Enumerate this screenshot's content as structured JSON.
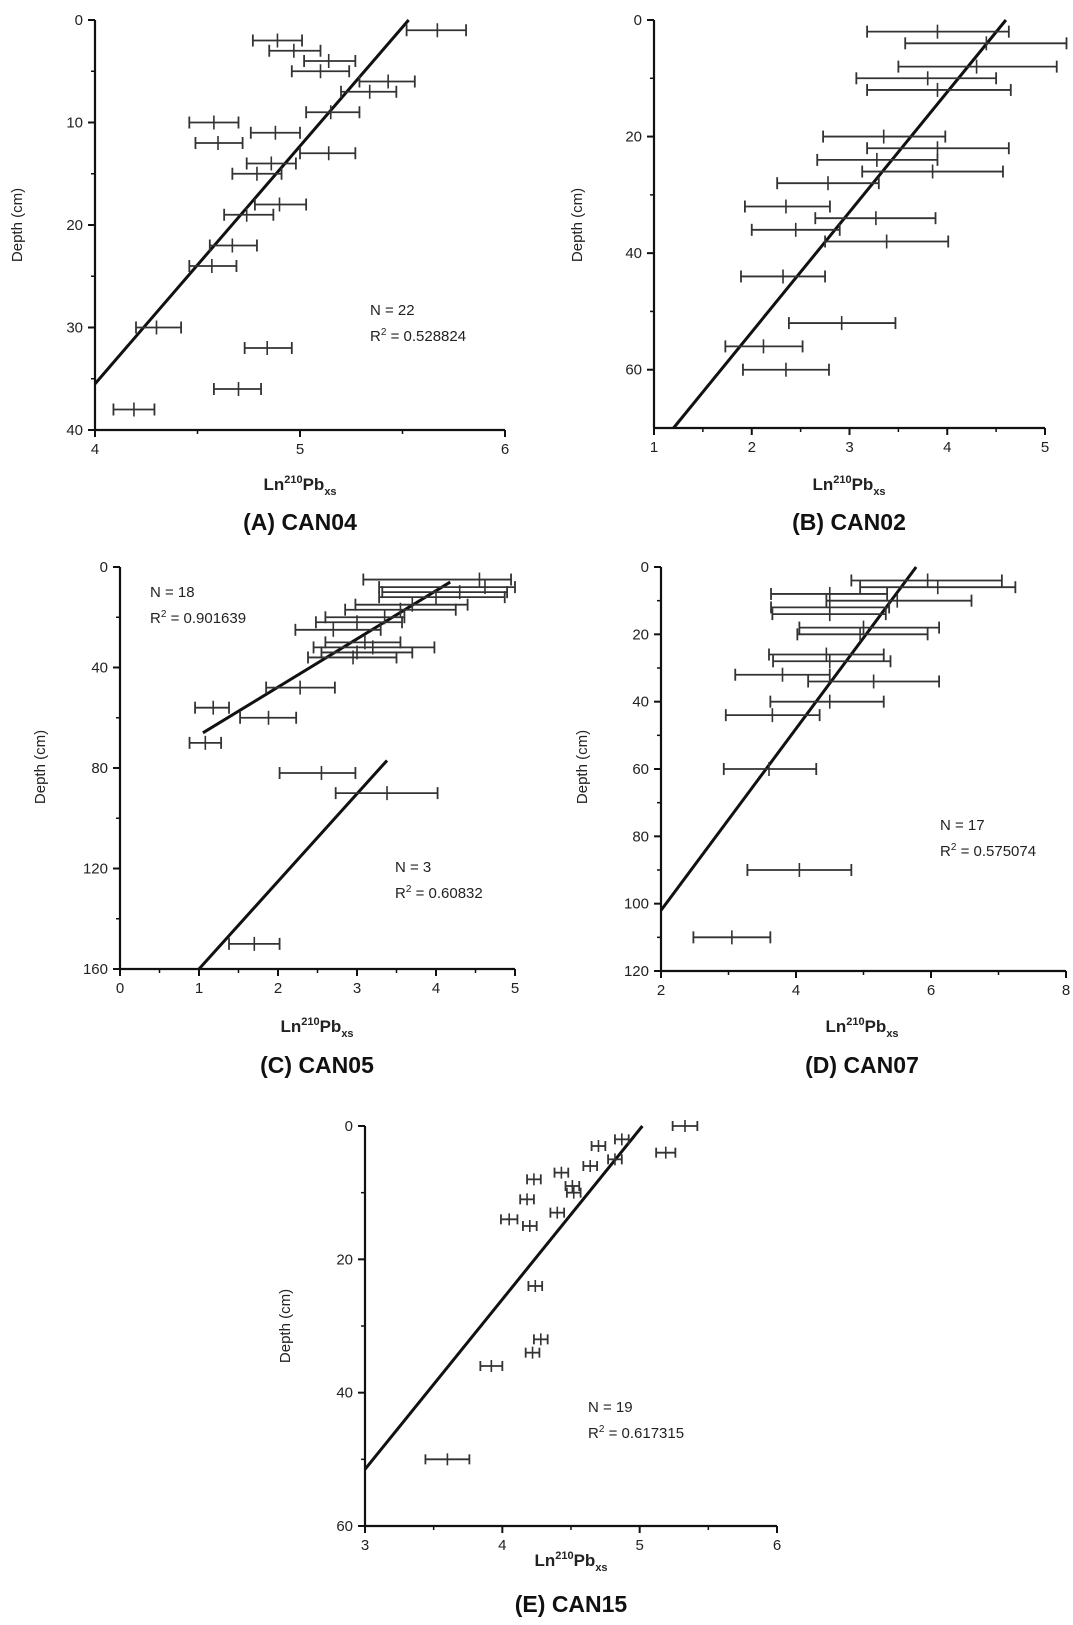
{
  "chart_data": [
    {
      "id": "A",
      "type": "scatter",
      "title": "(A) CAN04",
      "xlabel": {
        "base": "Ln",
        "sup": "210",
        "mid": "Pb",
        "sub": "xs"
      },
      "ylabel": "Depth (cm)",
      "xlim": [
        4,
        6
      ],
      "ylim": [
        0,
        40
      ],
      "y_inverted": true,
      "xticks": [
        4,
        5,
        6
      ],
      "yticks": [
        0,
        10,
        20,
        30,
        40
      ],
      "annotations": [
        "N = 22",
        "R² = 0.528824"
      ],
      "fit_lines": [
        {
          "x1": 5.53,
          "y1": 0,
          "x2": 4.0,
          "y2": 35.5
        }
      ],
      "points": [
        {
          "x": 5.67,
          "y": 1,
          "xmin": 5.52,
          "xmax": 5.81
        },
        {
          "x": 4.89,
          "y": 2,
          "xmin": 4.77,
          "xmax": 5.01
        },
        {
          "x": 4.97,
          "y": 3,
          "xmin": 4.85,
          "xmax": 5.1
        },
        {
          "x": 5.14,
          "y": 4,
          "xmin": 5.02,
          "xmax": 5.27
        },
        {
          "x": 5.1,
          "y": 5,
          "xmin": 4.96,
          "xmax": 5.24
        },
        {
          "x": 5.43,
          "y": 6,
          "xmin": 5.29,
          "xmax": 5.56
        },
        {
          "x": 5.34,
          "y": 7,
          "xmin": 5.2,
          "xmax": 5.47
        },
        {
          "x": 5.15,
          "y": 9,
          "xmin": 5.03,
          "xmax": 5.29
        },
        {
          "x": 4.58,
          "y": 10,
          "xmin": 4.46,
          "xmax": 4.7
        },
        {
          "x": 4.88,
          "y": 11,
          "xmin": 4.76,
          "xmax": 5.0
        },
        {
          "x": 4.6,
          "y": 12,
          "xmin": 4.49,
          "xmax": 4.72
        },
        {
          "x": 5.14,
          "y": 13,
          "xmin": 5.0,
          "xmax": 5.27
        },
        {
          "x": 4.86,
          "y": 14,
          "xmin": 4.74,
          "xmax": 4.98
        },
        {
          "x": 4.79,
          "y": 15,
          "xmin": 4.67,
          "xmax": 4.91
        },
        {
          "x": 4.9,
          "y": 18,
          "xmin": 4.78,
          "xmax": 5.03
        },
        {
          "x": 4.74,
          "y": 19,
          "xmin": 4.63,
          "xmax": 4.87
        },
        {
          "x": 4.67,
          "y": 22,
          "xmin": 4.56,
          "xmax": 4.79
        },
        {
          "x": 4.57,
          "y": 24,
          "xmin": 4.46,
          "xmax": 4.69
        },
        {
          "x": 4.3,
          "y": 30,
          "xmin": 4.2,
          "xmax": 4.42
        },
        {
          "x": 4.84,
          "y": 32,
          "xmin": 4.73,
          "xmax": 4.96
        },
        {
          "x": 4.7,
          "y": 36,
          "xmin": 4.58,
          "xmax": 4.81
        },
        {
          "x": 4.19,
          "y": 38,
          "xmin": 4.09,
          "xmax": 4.29
        }
      ]
    },
    {
      "id": "B",
      "type": "scatter",
      "title": "(B) CAN02",
      "xlabel": {
        "base": "Ln",
        "sup": "210",
        "mid": "Pb",
        "sub": "xs"
      },
      "ylabel": "Depth (cm)",
      "xlim": [
        1,
        5
      ],
      "ylim": [
        0,
        70
      ],
      "y_inverted": true,
      "xticks": [
        1,
        2,
        3,
        4,
        5
      ],
      "yticks": [
        0,
        20,
        40,
        60
      ],
      "annotations": [],
      "fit_lines": [
        {
          "x1": 4.6,
          "y1": 0,
          "x2": 1.2,
          "y2": 70
        }
      ],
      "points": [
        {
          "x": 3.9,
          "y": 2,
          "xmin": 3.18,
          "xmax": 4.63
        },
        {
          "x": 4.4,
          "y": 4,
          "xmin": 3.57,
          "xmax": 5.22
        },
        {
          "x": 4.3,
          "y": 8,
          "xmin": 3.5,
          "xmax": 5.12
        },
        {
          "x": 3.8,
          "y": 10,
          "xmin": 3.07,
          "xmax": 4.5
        },
        {
          "x": 3.9,
          "y": 12,
          "xmin": 3.18,
          "xmax": 4.65
        },
        {
          "x": 3.35,
          "y": 20,
          "xmin": 2.73,
          "xmax": 3.98
        },
        {
          "x": 3.9,
          "y": 22,
          "xmin": 3.18,
          "xmax": 4.63
        },
        {
          "x": 3.28,
          "y": 24,
          "xmin": 2.67,
          "xmax": 3.9
        },
        {
          "x": 3.85,
          "y": 26,
          "xmin": 3.13,
          "xmax": 4.57
        },
        {
          "x": 2.78,
          "y": 28,
          "xmin": 2.26,
          "xmax": 3.3
        },
        {
          "x": 2.35,
          "y": 32,
          "xmin": 1.93,
          "xmax": 2.8
        },
        {
          "x": 3.27,
          "y": 34,
          "xmin": 2.65,
          "xmax": 3.88
        },
        {
          "x": 2.45,
          "y": 36,
          "xmin": 2.0,
          "xmax": 2.9
        },
        {
          "x": 3.38,
          "y": 38,
          "xmin": 2.75,
          "xmax": 4.01
        },
        {
          "x": 2.32,
          "y": 44,
          "xmin": 1.89,
          "xmax": 2.75
        },
        {
          "x": 2.92,
          "y": 52,
          "xmin": 2.38,
          "xmax": 3.47
        },
        {
          "x": 2.12,
          "y": 56,
          "xmin": 1.73,
          "xmax": 2.52
        },
        {
          "x": 2.35,
          "y": 60,
          "xmin": 1.91,
          "xmax": 2.79
        }
      ]
    },
    {
      "id": "C",
      "type": "scatter",
      "title": "(C) CAN05",
      "xlabel": {
        "base": "Ln",
        "sup": "210",
        "mid": "Pb",
        "sub": "xs"
      },
      "ylabel": "Depth (cm)",
      "xlim": [
        0,
        5
      ],
      "ylim": [
        0,
        160
      ],
      "y_inverted": true,
      "xticks": [
        0,
        1,
        2,
        3,
        4,
        5
      ],
      "yticks": [
        0,
        40,
        80,
        120,
        160
      ],
      "annotations": [
        "N = 18",
        "R² = 0.901639",
        "N = 3",
        "R² = 0.60832"
      ],
      "fit_lines": [
        {
          "x1": 4.18,
          "y1": 6,
          "x2": 1.05,
          "y2": 66
        },
        {
          "x1": 3.38,
          "y1": 77,
          "x2": 1.0,
          "y2": 160
        }
      ],
      "points": [
        {
          "x": 4.55,
          "y": 5,
          "xmin": 3.08,
          "xmax": 4.95
        },
        {
          "x": 4.62,
          "y": 8,
          "xmin": 3.28,
          "xmax": 5.0
        },
        {
          "x": 4.3,
          "y": 10,
          "xmin": 3.32,
          "xmax": 4.9
        },
        {
          "x": 4.0,
          "y": 12,
          "xmin": 3.28,
          "xmax": 4.87
        },
        {
          "x": 3.7,
          "y": 15,
          "xmin": 2.98,
          "xmax": 4.4
        },
        {
          "x": 3.55,
          "y": 17,
          "xmin": 2.85,
          "xmax": 4.25
        },
        {
          "x": 3.35,
          "y": 20,
          "xmin": 2.6,
          "xmax": 3.6
        },
        {
          "x": 3.0,
          "y": 22,
          "xmin": 2.48,
          "xmax": 3.57
        },
        {
          "x": 2.7,
          "y": 25,
          "xmin": 2.22,
          "xmax": 3.3
        },
        {
          "x": 3.1,
          "y": 30,
          "xmin": 2.6,
          "xmax": 3.55
        },
        {
          "x": 3.2,
          "y": 32,
          "xmin": 2.45,
          "xmax": 3.98
        },
        {
          "x": 3.0,
          "y": 34,
          "xmin": 2.55,
          "xmax": 3.7
        },
        {
          "x": 2.95,
          "y": 36,
          "xmin": 2.38,
          "xmax": 3.5
        },
        {
          "x": 2.28,
          "y": 48,
          "xmin": 1.85,
          "xmax": 2.72
        },
        {
          "x": 1.18,
          "y": 56,
          "xmin": 0.95,
          "xmax": 1.38
        },
        {
          "x": 1.88,
          "y": 60,
          "xmin": 1.52,
          "xmax": 2.23
        },
        {
          "x": 1.08,
          "y": 70,
          "xmin": 0.88,
          "xmax": 1.28
        },
        {
          "x": 2.55,
          "y": 82,
          "xmin": 2.02,
          "xmax": 2.98
        },
        {
          "x": 3.38,
          "y": 90,
          "xmin": 2.73,
          "xmax": 4.02
        },
        {
          "x": 1.7,
          "y": 150,
          "xmin": 1.38,
          "xmax": 2.02
        }
      ]
    },
    {
      "id": "D",
      "type": "scatter",
      "title": "(D) CAN07",
      "xlabel": {
        "base": "Ln",
        "sup": "210",
        "mid": "Pb",
        "sub": "xs"
      },
      "ylabel": "Depth (cm)",
      "xlim": [
        2,
        8
      ],
      "ylim": [
        0,
        120
      ],
      "y_inverted": true,
      "xticks": [
        2,
        4,
        6,
        8
      ],
      "yticks": [
        0,
        20,
        40,
        60,
        80,
        100,
        120
      ],
      "annotations": [
        "N = 17",
        "R² = 0.575074"
      ],
      "fit_lines": [
        {
          "x1": 5.78,
          "y1": 0,
          "x2": 2.0,
          "y2": 102
        }
      ],
      "points": [
        {
          "x": 5.95,
          "y": 4,
          "xmin": 4.82,
          "xmax": 7.05
        },
        {
          "x": 6.1,
          "y": 6,
          "xmin": 4.95,
          "xmax": 7.25
        },
        {
          "x": 4.5,
          "y": 8,
          "xmin": 3.63,
          "xmax": 5.35
        },
        {
          "x": 5.5,
          "y": 10,
          "xmin": 4.45,
          "xmax": 6.6
        },
        {
          "x": 4.5,
          "y": 12,
          "xmin": 3.63,
          "xmax": 5.38
        },
        {
          "x": 4.5,
          "y": 14,
          "xmin": 3.65,
          "xmax": 5.33
        },
        {
          "x": 5.0,
          "y": 18,
          "xmin": 4.05,
          "xmax": 6.12
        },
        {
          "x": 4.95,
          "y": 20,
          "xmin": 4.02,
          "xmax": 5.95
        },
        {
          "x": 4.45,
          "y": 26,
          "xmin": 3.6,
          "xmax": 5.3
        },
        {
          "x": 4.5,
          "y": 28,
          "xmin": 3.66,
          "xmax": 5.4
        },
        {
          "x": 3.8,
          "y": 32,
          "xmin": 3.1,
          "xmax": 4.5
        },
        {
          "x": 5.15,
          "y": 34,
          "xmin": 4.18,
          "xmax": 6.12
        },
        {
          "x": 4.5,
          "y": 40,
          "xmin": 3.62,
          "xmax": 5.3
        },
        {
          "x": 3.65,
          "y": 44,
          "xmin": 2.96,
          "xmax": 4.35
        },
        {
          "x": 3.6,
          "y": 60,
          "xmin": 2.93,
          "xmax": 4.3
        },
        {
          "x": 4.05,
          "y": 90,
          "xmin": 3.28,
          "xmax": 4.82
        },
        {
          "x": 3.05,
          "y": 110,
          "xmin": 2.48,
          "xmax": 3.62
        }
      ]
    },
    {
      "id": "E",
      "type": "scatter",
      "title": "(E) CAN15",
      "xlabel": {
        "base": "Ln",
        "sup": "210",
        "mid": "Pb",
        "sub": "xs"
      },
      "ylabel": "Depth (cm)",
      "xlim": [
        3,
        6
      ],
      "ylim": [
        0,
        60
      ],
      "y_inverted": true,
      "xticks": [
        3,
        4,
        5,
        6
      ],
      "yticks": [
        0,
        20,
        40,
        60
      ],
      "annotations": [
        "N = 19",
        "R² = 0.617315"
      ],
      "fit_lines": [
        {
          "x1": 5.02,
          "y1": 0,
          "x2": 3.0,
          "y2": 51.5
        }
      ],
      "points": [
        {
          "x": 5.33,
          "y": 0,
          "xmin": 5.24,
          "xmax": 5.42
        },
        {
          "x": 4.87,
          "y": 2,
          "xmin": 4.82,
          "xmax": 4.92
        },
        {
          "x": 4.7,
          "y": 3,
          "xmin": 4.65,
          "xmax": 4.75
        },
        {
          "x": 5.19,
          "y": 4,
          "xmin": 5.12,
          "xmax": 5.26
        },
        {
          "x": 4.82,
          "y": 5,
          "xmin": 4.77,
          "xmax": 4.87
        },
        {
          "x": 4.64,
          "y": 6,
          "xmin": 4.59,
          "xmax": 4.69
        },
        {
          "x": 4.43,
          "y": 7,
          "xmin": 4.38,
          "xmax": 4.48
        },
        {
          "x": 4.23,
          "y": 8,
          "xmin": 4.18,
          "xmax": 4.28
        },
        {
          "x": 4.51,
          "y": 9,
          "xmin": 4.46,
          "xmax": 4.56
        },
        {
          "x": 4.52,
          "y": 10,
          "xmin": 4.47,
          "xmax": 4.57
        },
        {
          "x": 4.18,
          "y": 11,
          "xmin": 4.13,
          "xmax": 4.23
        },
        {
          "x": 4.4,
          "y": 13,
          "xmin": 4.35,
          "xmax": 4.45
        },
        {
          "x": 4.05,
          "y": 14,
          "xmin": 3.99,
          "xmax": 4.11
        },
        {
          "x": 4.2,
          "y": 15,
          "xmin": 4.15,
          "xmax": 4.25
        },
        {
          "x": 4.24,
          "y": 24,
          "xmin": 4.19,
          "xmax": 4.29
        },
        {
          "x": 4.28,
          "y": 32,
          "xmin": 4.23,
          "xmax": 4.33
        },
        {
          "x": 4.22,
          "y": 34,
          "xmin": 4.17,
          "xmax": 4.27
        },
        {
          "x": 3.92,
          "y": 36,
          "xmin": 3.84,
          "xmax": 4.0
        },
        {
          "x": 3.6,
          "y": 50,
          "xmin": 3.44,
          "xmax": 3.76
        }
      ]
    }
  ]
}
